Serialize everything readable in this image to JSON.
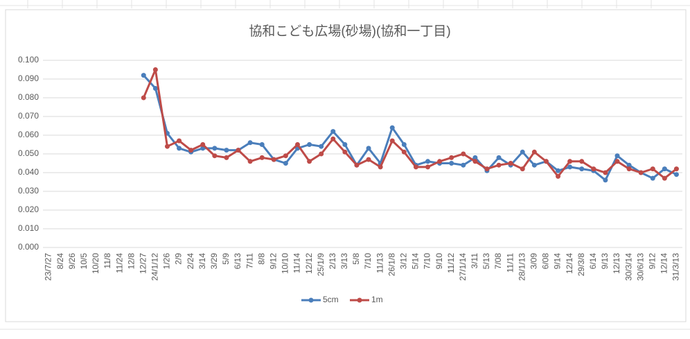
{
  "chart_data": {
    "type": "line",
    "title": "協和こども広場(砂場)(協和一丁目)",
    "categories": [
      "23/7/27",
      "8/24",
      "9/26",
      "10/5",
      "10/20",
      "11/8",
      "11/24",
      "12/8",
      "12/27",
      "24/1/12",
      "1/26",
      "2/9",
      "2/24",
      "3/14",
      "3/29",
      "5/9",
      "6/13",
      "7/11",
      "8/8",
      "9/12",
      "10/10",
      "11/14",
      "12/12",
      "25/1/9",
      "2/13",
      "3/13",
      "5/8",
      "7/10",
      "11/13",
      "26/1/8",
      "3/12",
      "5/14",
      "7/10",
      "9/10",
      "11/12",
      "27/1/14",
      "3/11",
      "5/13",
      "7/08",
      "11/11",
      "28/1/13",
      "3/09",
      "6/08",
      "9/14",
      "12/14",
      "29/3/8",
      "6/14",
      "9/13",
      "12/13",
      "30/3/14",
      "30/6/13",
      "9/12",
      "12/14",
      "31/3/13"
    ],
    "series": [
      {
        "name": "5cm",
        "color": "#4a7ebb",
        "values": [
          null,
          null,
          null,
          null,
          null,
          null,
          null,
          null,
          0.092,
          0.085,
          0.061,
          0.053,
          0.051,
          0.053,
          0.053,
          0.052,
          0.052,
          0.056,
          0.055,
          0.047,
          0.045,
          0.053,
          0.055,
          0.054,
          0.062,
          0.055,
          0.044,
          0.053,
          0.045,
          0.064,
          0.055,
          0.044,
          0.046,
          0.045,
          0.045,
          0.044,
          0.048,
          0.041,
          0.048,
          0.044,
          0.051,
          0.044,
          0.046,
          0.041,
          0.043,
          0.042,
          0.041,
          0.036,
          0.049,
          0.044,
          0.04,
          0.037,
          0.042,
          0.039
        ]
      },
      {
        "name": "1m",
        "color": "#be4b48",
        "values": [
          null,
          null,
          null,
          null,
          null,
          null,
          null,
          null,
          0.08,
          0.095,
          0.054,
          0.057,
          0.052,
          0.055,
          0.049,
          0.048,
          0.052,
          0.046,
          0.048,
          0.047,
          0.049,
          0.055,
          0.046,
          0.05,
          0.058,
          0.051,
          0.044,
          0.047,
          0.043,
          0.057,
          0.051,
          0.043,
          0.043,
          0.046,
          0.048,
          0.05,
          0.046,
          0.042,
          0.044,
          0.045,
          0.042,
          0.051,
          0.046,
          0.038,
          0.046,
          0.046,
          0.042,
          0.04,
          0.046,
          0.042,
          0.04,
          0.042,
          0.037,
          0.042
        ]
      }
    ],
    "ylim": [
      0,
      0.1
    ],
    "yticks": [
      {
        "value": 0,
        "label": "0.000"
      },
      {
        "value": 0.01,
        "label": "0.010"
      },
      {
        "value": 0.02,
        "label": "0.020"
      },
      {
        "value": 0.03,
        "label": "0.030"
      },
      {
        "value": 0.04,
        "label": "0.040"
      },
      {
        "value": 0.05,
        "label": "0.050"
      },
      {
        "value": 0.06,
        "label": "0.060"
      },
      {
        "value": 0.07,
        "label": "0.070"
      },
      {
        "value": 0.08,
        "label": "0.080"
      },
      {
        "value": 0.09,
        "label": "0.090"
      },
      {
        "value": 0.1,
        "label": "0.100"
      }
    ],
    "grid": true,
    "legend": "bottom"
  }
}
